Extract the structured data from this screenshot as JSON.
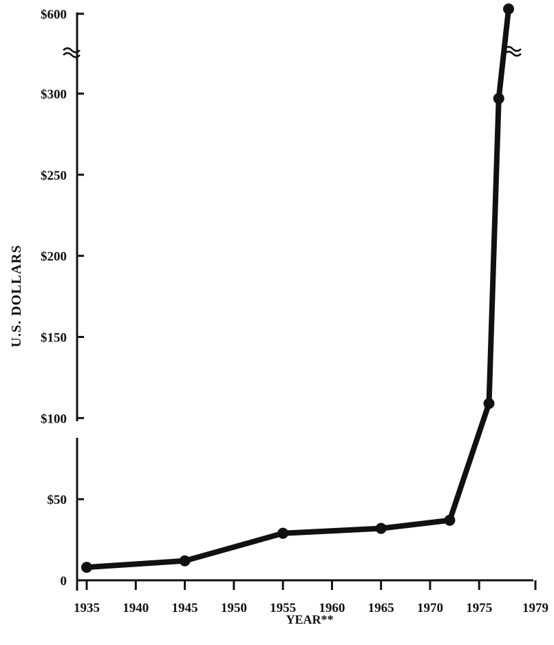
{
  "chart_data": {
    "type": "line",
    "title": "",
    "xlabel": "YEAR**",
    "ylabel": "U.S. DOLLARS",
    "x_ticks": [
      "1935",
      "1940",
      "1945",
      "1950",
      "1955",
      "1960",
      "1965",
      "1970",
      "1975",
      "1979"
    ],
    "y_ticks": [
      "0",
      "$50",
      "$100",
      "$150",
      "$200",
      "$250",
      "$300",
      "$600"
    ],
    "axis_break": "y-axis broken between $300 and $600",
    "grid": false,
    "series": [
      {
        "x": [
          1935,
          1945,
          1955,
          1965,
          1972,
          1976,
          1977,
          1978
        ],
        "y": [
          8,
          12,
          29,
          32,
          37,
          109,
          297,
          600
        ]
      }
    ],
    "colors": {
      "line": "#111111",
      "background": "#ffffff"
    }
  }
}
